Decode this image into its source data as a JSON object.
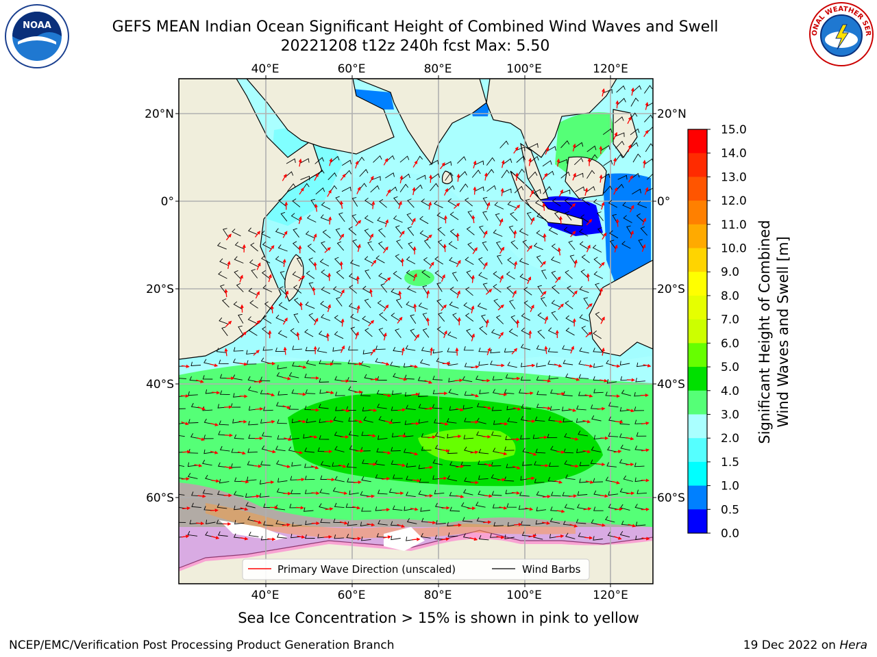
{
  "title_line1": "GEFS MEAN Indian Ocean Significant Height of Combined Wind Waves and Swell",
  "title_line2": "20221208 t12z 240h fcst   Max: 5.50",
  "logos": {
    "left": "noaa-logo",
    "left_text": "NOAA",
    "right": "nws-logo",
    "right_text": "NATIONAL WEATHER SERVICE"
  },
  "map": {
    "lon_labels": [
      "40°E",
      "60°E",
      "80°E",
      "100°E",
      "120°E"
    ],
    "lat_labels": [
      "20°N",
      "0°",
      "20°S",
      "40°S",
      "60°S"
    ],
    "colors": {
      "ocean": "#aaffff",
      "land": "#f0eedc",
      "ice": "#ffffff"
    }
  },
  "legend": {
    "wave_direction": "Primary Wave Direction (unscaled)",
    "wind_barbs": "Wind Barbs",
    "wave_color": "#ff0000",
    "barb_color": "#000000"
  },
  "colorbar": {
    "label_line1": "Significant Height of Combined",
    "label_line2": "Wind Waves and Swell [m]",
    "ticks": [
      "15.0",
      "14.0",
      "13.0",
      "12.0",
      "11.0",
      "10.0",
      "9.0",
      "8.0",
      "7.0",
      "6.0",
      "5.0",
      "4.0",
      "3.0",
      "2.0",
      "1.5",
      "1.0",
      "0.5",
      "0.0"
    ],
    "colors": [
      "#ff0000",
      "#ff2b00",
      "#ff5500",
      "#ff8000",
      "#ffaa00",
      "#ffd400",
      "#ffff00",
      "#e6ff00",
      "#ccff00",
      "#66ff00",
      "#00e000",
      "#55ff77",
      "#aaffff",
      "#55ffff",
      "#00ffff",
      "#0080ff",
      "#0000ff"
    ]
  },
  "caption": "Sea Ice Concentration > 15% is shown in pink to yellow",
  "footer": {
    "left": "NCEP/EMC/Verification Post Processing Product Generation Branch",
    "date": "19 Dec 2022 on ",
    "host": "Hera"
  }
}
